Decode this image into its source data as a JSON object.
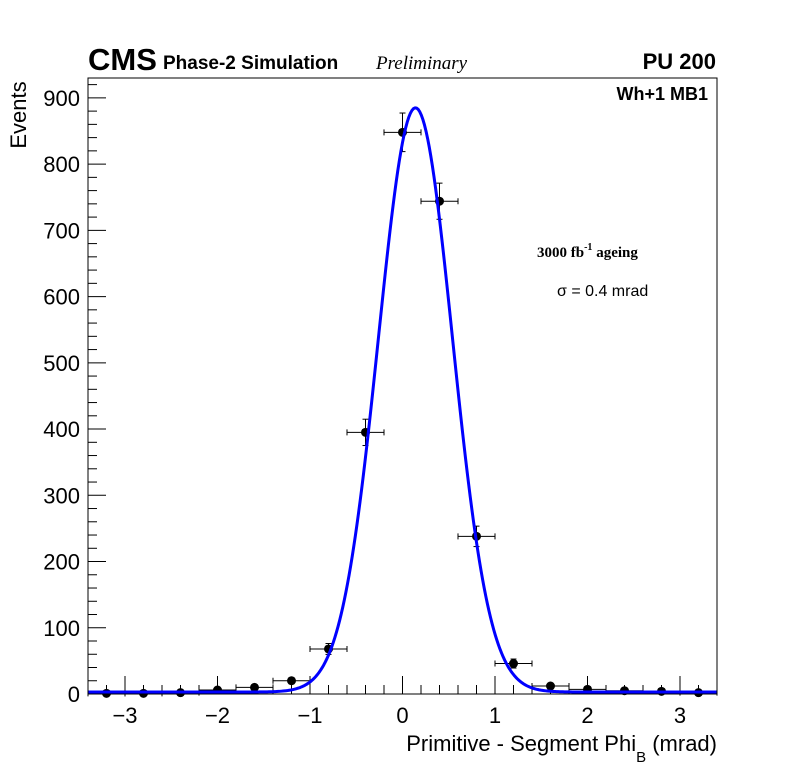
{
  "header": {
    "cms": "CMS",
    "phase": "Phase-2 Simulation",
    "preliminary": "Preliminary",
    "pileup": "PU 200",
    "chamber": "Wh+1 MB1"
  },
  "annotations": {
    "ageing_value": "3000 fb",
    "ageing_exp": "-1",
    "ageing_suffix": " ageing",
    "sigma_symbol": "σ",
    "sigma_text": " = 0.4 mrad"
  },
  "chart_data": {
    "type": "scatter",
    "title": "",
    "xlabel_main": "Primitive - Segment Phi",
    "xlabel_sub": "B",
    "xlabel_unit": " (mrad)",
    "ylabel": "Events",
    "xlim": [
      -3.4,
      3.4
    ],
    "ylim": [
      0,
      930
    ],
    "x_ticks": [
      -3,
      -2,
      -1,
      0,
      1,
      2,
      3
    ],
    "x_tick_labels": [
      "−3",
      "−2",
      "−1",
      "0",
      "1",
      "2",
      "3"
    ],
    "y_ticks": [
      0,
      100,
      200,
      300,
      400,
      500,
      600,
      700,
      800,
      900
    ],
    "y_tick_labels": [
      "0",
      "100",
      "200",
      "300",
      "400",
      "500",
      "600",
      "700",
      "800",
      "900"
    ],
    "grid": false,
    "points": {
      "name": "Simulation",
      "x": [
        -3.2,
        -2.8,
        -2.4,
        -2.0,
        -1.6,
        -1.2,
        -0.8,
        -0.4,
        0.0,
        0.4,
        0.8,
        1.2,
        1.6,
        2.0,
        2.4,
        2.8,
        3.2
      ],
      "y": [
        1,
        1,
        2,
        6,
        10,
        20,
        68,
        395,
        848,
        744,
        238,
        46,
        12,
        7,
        5,
        4,
        2
      ],
      "xerr": 0.2
    },
    "fit": {
      "name": "Gaussian fit",
      "type": "gaussian",
      "amplitude": 882,
      "mean": 0.14,
      "sigma": 0.4,
      "baseline": 3,
      "color": "#0000ff"
    },
    "marker_color": "#000000"
  }
}
